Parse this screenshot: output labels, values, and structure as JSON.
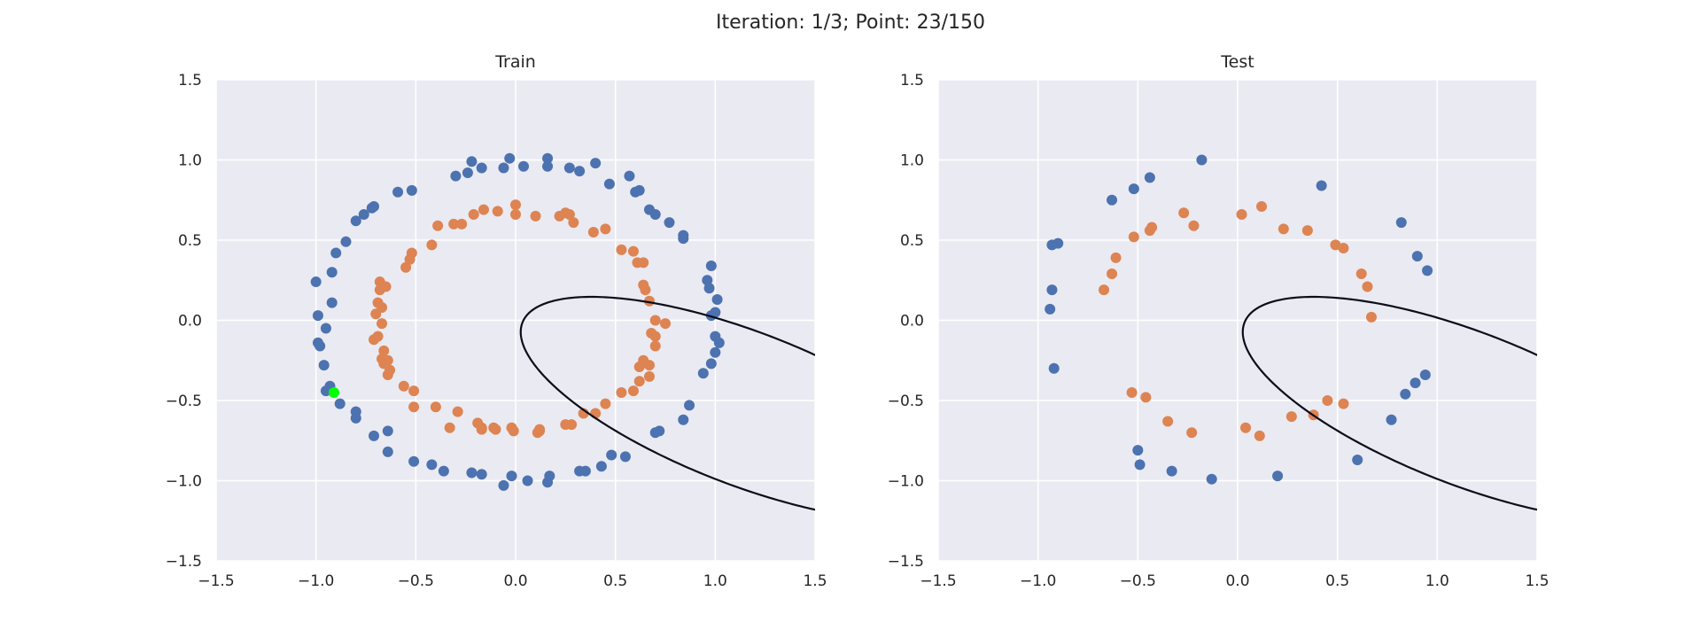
{
  "figure": {
    "suptitle": "Iteration: 1/3; Point: 23/150"
  },
  "colors": {
    "background": "#eaeaf2",
    "grid": "#ffffff",
    "class_0": "#4c72b0",
    "class_1": "#dd8452",
    "highlight": "#00ff00",
    "boundary": "#0d0d1a"
  },
  "chart_data": [
    {
      "type": "scatter",
      "title": "Train",
      "xlim": [
        -1.5,
        1.5
      ],
      "ylim": [
        -1.5,
        1.5
      ],
      "xticks": [
        -1.5,
        -1.0,
        -0.5,
        0.0,
        0.5,
        1.0,
        1.5
      ],
      "yticks": [
        -1.5,
        -1.0,
        -0.5,
        0.0,
        0.5,
        1.0,
        1.5
      ],
      "xtick_labels": [
        "−1.5",
        "−1.0",
        "−0.5",
        "0.0",
        "0.5",
        "1.0",
        "1.5"
      ],
      "ytick_labels": [
        "−1.5",
        "−1.0",
        "−0.5",
        "0.0",
        "0.5",
        "1.0",
        "1.5"
      ],
      "grid": true,
      "series": [
        {
          "class": 0,
          "color": "#4c72b0",
          "points": [
            [
              -0.03,
              1.01
            ],
            [
              0.16,
              1.01
            ],
            [
              0.4,
              0.98
            ],
            [
              -0.22,
              0.99
            ],
            [
              0.04,
              0.96
            ],
            [
              0.16,
              0.96
            ],
            [
              -0.06,
              0.95
            ],
            [
              0.27,
              0.95
            ],
            [
              -0.17,
              0.95
            ],
            [
              0.32,
              0.93
            ],
            [
              -0.24,
              0.92
            ],
            [
              -0.3,
              0.9
            ],
            [
              0.57,
              0.9
            ],
            [
              0.47,
              0.85
            ],
            [
              0.62,
              0.81
            ],
            [
              0.6,
              0.8
            ],
            [
              -0.59,
              0.8
            ],
            [
              -0.52,
              0.81
            ],
            [
              -0.71,
              0.71
            ],
            [
              -0.72,
              0.7
            ],
            [
              -0.76,
              0.66
            ],
            [
              0.67,
              0.69
            ],
            [
              0.7,
              0.66
            ],
            [
              -0.8,
              0.62
            ],
            [
              0.77,
              0.61
            ],
            [
              0.84,
              0.53
            ],
            [
              0.84,
              0.51
            ],
            [
              -0.85,
              0.49
            ],
            [
              -0.9,
              0.42
            ],
            [
              0.98,
              0.34
            ],
            [
              -0.92,
              0.3
            ],
            [
              0.96,
              0.25
            ],
            [
              -1.0,
              0.24
            ],
            [
              0.97,
              0.2
            ],
            [
              1.01,
              0.13
            ],
            [
              -0.92,
              0.11
            ],
            [
              1.0,
              0.05
            ],
            [
              0.98,
              0.03
            ],
            [
              -0.99,
              0.03
            ],
            [
              -0.95,
              -0.05
            ],
            [
              1.0,
              -0.1
            ],
            [
              1.02,
              -0.14
            ],
            [
              -0.99,
              -0.14
            ],
            [
              -0.98,
              -0.16
            ],
            [
              1.0,
              -0.2
            ],
            [
              -0.96,
              -0.28
            ],
            [
              0.98,
              -0.27
            ],
            [
              0.94,
              -0.33
            ],
            [
              -0.93,
              -0.41
            ],
            [
              -0.95,
              -0.44
            ],
            [
              0.87,
              -0.53
            ],
            [
              -0.88,
              -0.52
            ],
            [
              -0.8,
              -0.57
            ],
            [
              -0.8,
              -0.61
            ],
            [
              0.84,
              -0.62
            ],
            [
              -0.64,
              -0.69
            ],
            [
              -0.71,
              -0.72
            ],
            [
              0.72,
              -0.69
            ],
            [
              0.7,
              -0.7
            ],
            [
              -0.64,
              -0.82
            ],
            [
              0.55,
              -0.85
            ],
            [
              0.48,
              -0.84
            ],
            [
              -0.51,
              -0.88
            ],
            [
              0.43,
              -0.91
            ],
            [
              -0.42,
              -0.9
            ],
            [
              -0.36,
              -0.94
            ],
            [
              0.35,
              -0.94
            ],
            [
              0.32,
              -0.94
            ],
            [
              -0.22,
              -0.95
            ],
            [
              0.17,
              -0.97
            ],
            [
              -0.17,
              -0.96
            ],
            [
              -0.02,
              -0.97
            ],
            [
              0.06,
              -1.0
            ],
            [
              0.16,
              -1.01
            ],
            [
              -0.06,
              -1.03
            ]
          ]
        },
        {
          "class": 1,
          "color": "#dd8452",
          "points": [
            [
              0.0,
              0.72
            ],
            [
              -0.09,
              0.68
            ],
            [
              -0.16,
              0.69
            ],
            [
              0.0,
              0.66
            ],
            [
              0.25,
              0.67
            ],
            [
              -0.21,
              0.66
            ],
            [
              0.27,
              0.66
            ],
            [
              0.1,
              0.65
            ],
            [
              0.22,
              0.65
            ],
            [
              0.29,
              0.61
            ],
            [
              -0.27,
              0.6
            ],
            [
              -0.31,
              0.6
            ],
            [
              -0.39,
              0.59
            ],
            [
              0.39,
              0.55
            ],
            [
              0.45,
              0.57
            ],
            [
              -0.52,
              0.42
            ],
            [
              -0.53,
              0.38
            ],
            [
              0.53,
              0.44
            ],
            [
              0.59,
              0.43
            ],
            [
              -0.55,
              0.33
            ],
            [
              0.64,
              0.36
            ],
            [
              0.61,
              0.36
            ],
            [
              -0.42,
              0.47
            ],
            [
              -0.68,
              0.24
            ],
            [
              -0.65,
              0.21
            ],
            [
              -0.68,
              0.19
            ],
            [
              0.64,
              0.22
            ],
            [
              0.65,
              0.19
            ],
            [
              0.67,
              0.12
            ],
            [
              -0.69,
              0.11
            ],
            [
              -0.67,
              0.08
            ],
            [
              -0.7,
              0.04
            ],
            [
              0.7,
              0.0
            ],
            [
              0.75,
              -0.02
            ],
            [
              -0.67,
              -0.02
            ],
            [
              0.68,
              -0.08
            ],
            [
              0.7,
              -0.1
            ],
            [
              -0.69,
              -0.1
            ],
            [
              -0.71,
              -0.12
            ],
            [
              0.7,
              -0.16
            ],
            [
              -0.66,
              -0.19
            ],
            [
              -0.67,
              -0.24
            ],
            [
              -0.64,
              -0.25
            ],
            [
              0.64,
              -0.25
            ],
            [
              0.62,
              -0.29
            ],
            [
              -0.66,
              -0.27
            ],
            [
              0.67,
              -0.28
            ],
            [
              -0.63,
              -0.31
            ],
            [
              -0.64,
              -0.34
            ],
            [
              0.62,
              -0.38
            ],
            [
              0.67,
              -0.35
            ],
            [
              -0.56,
              -0.41
            ],
            [
              -0.51,
              -0.44
            ],
            [
              0.53,
              -0.45
            ],
            [
              0.59,
              -0.44
            ],
            [
              -0.4,
              -0.54
            ],
            [
              -0.51,
              -0.54
            ],
            [
              0.45,
              -0.52
            ],
            [
              -0.29,
              -0.57
            ],
            [
              0.34,
              -0.58
            ],
            [
              0.4,
              -0.58
            ],
            [
              -0.19,
              -0.64
            ],
            [
              0.25,
              -0.65
            ],
            [
              0.28,
              -0.65
            ],
            [
              -0.17,
              -0.67
            ],
            [
              -0.1,
              -0.68
            ],
            [
              -0.02,
              -0.67
            ],
            [
              -0.01,
              -0.69
            ],
            [
              -0.33,
              -0.67
            ],
            [
              -0.11,
              -0.67
            ],
            [
              -0.17,
              -0.68
            ],
            [
              0.12,
              -0.68
            ],
            [
              0.12,
              -0.69
            ],
            [
              0.11,
              -0.7
            ]
          ]
        }
      ],
      "highlight_point": [
        -0.91,
        -0.45
      ],
      "decision_boundary": {
        "type": "ellipse",
        "center": [
          1.15,
          -0.55
        ],
        "semi_axes": [
          1.24,
          0.46
        ],
        "rotation_deg": -27
      }
    },
    {
      "type": "scatter",
      "title": "Test",
      "xlim": [
        -1.5,
        1.5
      ],
      "ylim": [
        -1.5,
        1.5
      ],
      "xticks": [
        -1.5,
        -1.0,
        -0.5,
        0.0,
        0.5,
        1.0,
        1.5
      ],
      "yticks": [
        -1.5,
        -1.0,
        -0.5,
        0.0,
        0.5,
        1.0,
        1.5
      ],
      "xtick_labels": [
        "−1.5",
        "−1.0",
        "−0.5",
        "0.0",
        "0.5",
        "1.0",
        "1.5"
      ],
      "ytick_labels": [
        "−1.5",
        "−1.0",
        "−0.5",
        "0.0",
        "0.5",
        "1.0",
        "1.5"
      ],
      "grid": true,
      "series": [
        {
          "class": 0,
          "color": "#4c72b0",
          "points": [
            [
              -0.18,
              1.0
            ],
            [
              -0.44,
              0.89
            ],
            [
              -0.52,
              0.82
            ],
            [
              -0.63,
              0.75
            ],
            [
              0.42,
              0.84
            ],
            [
              0.82,
              0.61
            ],
            [
              -0.9,
              0.48
            ],
            [
              -0.93,
              0.47
            ],
            [
              0.9,
              0.4
            ],
            [
              0.95,
              0.31
            ],
            [
              -0.93,
              0.19
            ],
            [
              -0.94,
              0.07
            ],
            [
              -0.92,
              -0.3
            ],
            [
              0.94,
              -0.34
            ],
            [
              0.89,
              -0.39
            ],
            [
              0.84,
              -0.46
            ],
            [
              0.77,
              -0.62
            ],
            [
              -0.5,
              -0.81
            ],
            [
              0.6,
              -0.87
            ],
            [
              -0.49,
              -0.9
            ],
            [
              -0.33,
              -0.94
            ],
            [
              0.2,
              -0.97
            ],
            [
              -0.13,
              -0.99
            ]
          ]
        },
        {
          "class": 1,
          "color": "#dd8452",
          "points": [
            [
              0.12,
              0.71
            ],
            [
              0.02,
              0.66
            ],
            [
              -0.27,
              0.67
            ],
            [
              -0.43,
              0.58
            ],
            [
              -0.44,
              0.56
            ],
            [
              -0.22,
              0.59
            ],
            [
              0.23,
              0.57
            ],
            [
              0.35,
              0.56
            ],
            [
              -0.52,
              0.52
            ],
            [
              0.49,
              0.47
            ],
            [
              0.53,
              0.45
            ],
            [
              -0.61,
              0.39
            ],
            [
              -0.63,
              0.29
            ],
            [
              0.62,
              0.29
            ],
            [
              0.65,
              0.21
            ],
            [
              -0.67,
              0.19
            ],
            [
              0.67,
              0.02
            ],
            [
              -0.53,
              -0.45
            ],
            [
              -0.46,
              -0.48
            ],
            [
              0.45,
              -0.5
            ],
            [
              0.53,
              -0.52
            ],
            [
              0.38,
              -0.59
            ],
            [
              0.27,
              -0.6
            ],
            [
              -0.35,
              -0.63
            ],
            [
              0.04,
              -0.67
            ],
            [
              -0.23,
              -0.7
            ],
            [
              0.11,
              -0.72
            ]
          ]
        }
      ],
      "decision_boundary": {
        "type": "ellipse",
        "center": [
          1.15,
          -0.55
        ],
        "semi_axes": [
          1.24,
          0.46
        ],
        "rotation_deg": -27
      }
    }
  ]
}
